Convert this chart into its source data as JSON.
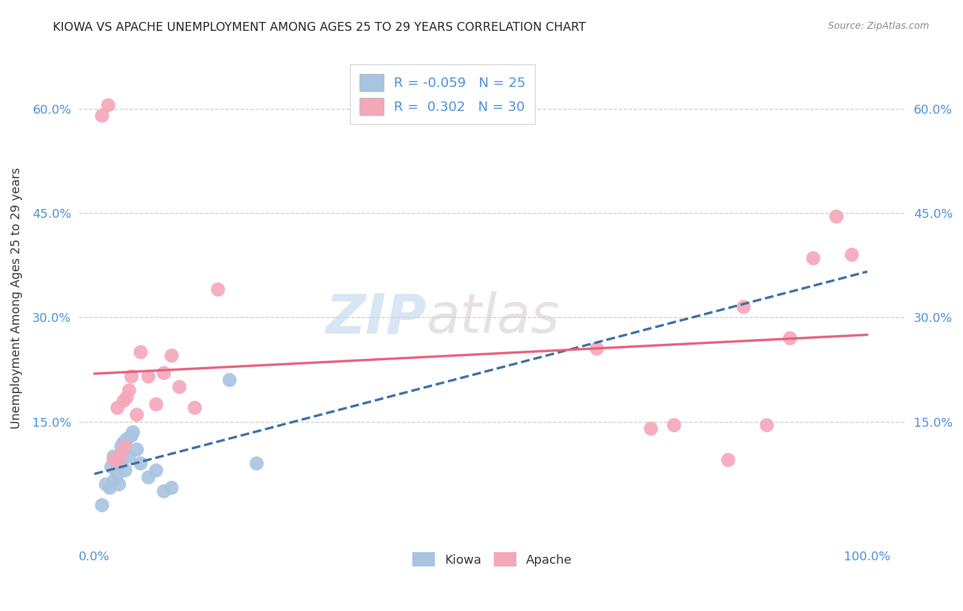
{
  "title": "KIOWA VS APACHE UNEMPLOYMENT AMONG AGES 25 TO 29 YEARS CORRELATION CHART",
  "source": "Source: ZipAtlas.com",
  "xlabel": "",
  "ylabel": "Unemployment Among Ages 25 to 29 years",
  "kiowa_color": "#a8c4e0",
  "apache_color": "#f4a7b9",
  "kiowa_line_color": "#3a6ea8",
  "apache_line_color": "#e8607a",
  "kiowa_R": -0.059,
  "kiowa_N": 25,
  "apache_R": 0.302,
  "apache_N": 30,
  "watermark_zip": "ZIP",
  "watermark_atlas": "atlas",
  "kiowa_x": [
    0.01,
    0.015,
    0.02,
    0.022,
    0.025,
    0.025,
    0.03,
    0.03,
    0.032,
    0.035,
    0.035,
    0.038,
    0.04,
    0.042,
    0.045,
    0.048,
    0.05,
    0.055,
    0.06,
    0.07,
    0.08,
    0.09,
    0.1,
    0.175,
    0.21
  ],
  "kiowa_y": [
    0.03,
    0.06,
    0.055,
    0.085,
    0.065,
    0.1,
    0.075,
    0.095,
    0.06,
    0.09,
    0.115,
    0.12,
    0.08,
    0.125,
    0.1,
    0.13,
    0.135,
    0.11,
    0.09,
    0.07,
    0.08,
    0.05,
    0.055,
    0.21,
    0.09
  ],
  "apache_x": [
    0.01,
    0.018,
    0.025,
    0.03,
    0.032,
    0.035,
    0.038,
    0.04,
    0.042,
    0.045,
    0.048,
    0.055,
    0.06,
    0.07,
    0.08,
    0.09,
    0.1,
    0.11,
    0.13,
    0.16,
    0.65,
    0.72,
    0.75,
    0.82,
    0.84,
    0.87,
    0.9,
    0.93,
    0.96,
    0.98
  ],
  "apache_y": [
    0.59,
    0.605,
    0.095,
    0.17,
    0.095,
    0.105,
    0.18,
    0.115,
    0.185,
    0.195,
    0.215,
    0.16,
    0.25,
    0.215,
    0.175,
    0.22,
    0.245,
    0.2,
    0.17,
    0.34,
    0.255,
    0.14,
    0.145,
    0.095,
    0.315,
    0.145,
    0.27,
    0.385,
    0.445,
    0.39
  ],
  "ytick_vals": [
    0.15,
    0.3,
    0.45,
    0.6
  ],
  "ytick_labels": [
    "15.0%",
    "30.0%",
    "45.0%",
    "60.0%"
  ],
  "xtick_vals": [
    0.0,
    1.0
  ],
  "xtick_labels": [
    "0.0%",
    "100.0%"
  ],
  "xlim": [
    -0.02,
    1.05
  ],
  "ylim": [
    -0.025,
    0.68
  ]
}
